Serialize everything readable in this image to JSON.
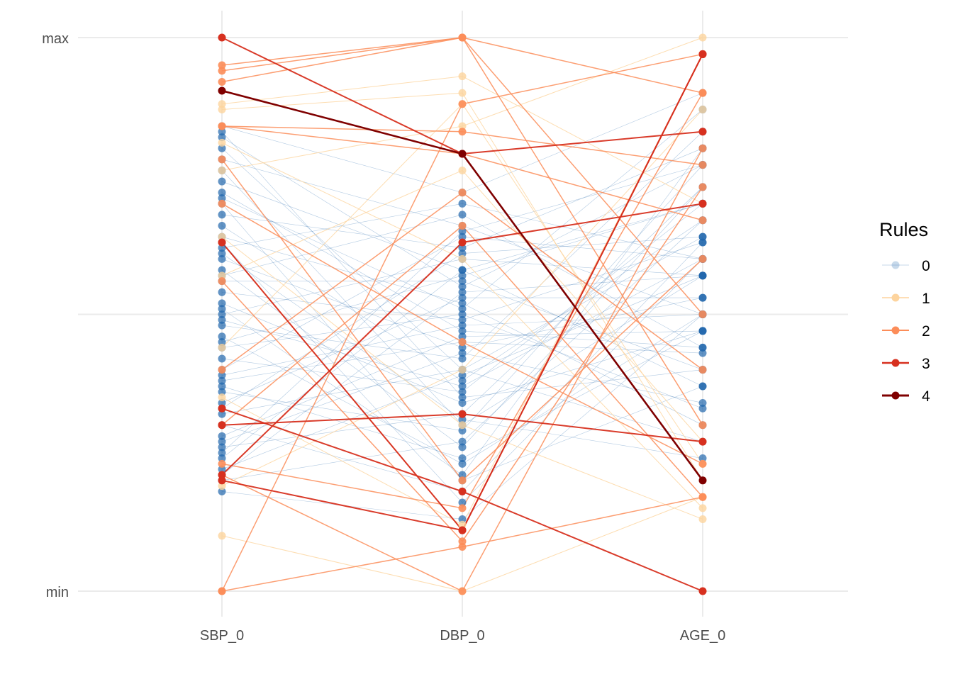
{
  "chart_data": {
    "type": "parallel-coordinates",
    "axes": [
      "SBP_0",
      "DBP_0",
      "AGE_0"
    ],
    "y_ticks": [
      "min",
      "max"
    ],
    "ylim": [
      0,
      1
    ],
    "grid": true,
    "legend": {
      "title": "Rules",
      "placement": "right",
      "entries": [
        "0",
        "1",
        "2",
        "3",
        "4"
      ]
    },
    "colors": {
      "0": "#2166ac",
      "1": "#fdd49e",
      "2": "#fc8d59",
      "3": "#d7301f",
      "4": "#7f0000"
    },
    "lines": [
      {
        "rule": 0,
        "v": [
          0.84,
          0.72,
          0.9
        ]
      },
      {
        "rule": 0,
        "v": [
          0.82,
          0.55,
          0.77
        ]
      },
      {
        "rule": 0,
        "v": [
          0.8,
          0.4,
          0.64
        ]
      },
      {
        "rule": 0,
        "v": [
          0.78,
          0.66,
          0.5
        ]
      },
      {
        "rule": 0,
        "v": [
          0.76,
          0.3,
          0.57
        ]
      },
      {
        "rule": 0,
        "v": [
          0.74,
          0.58,
          0.7
        ]
      },
      {
        "rule": 0,
        "v": [
          0.72,
          0.47,
          0.44
        ]
      },
      {
        "rule": 0,
        "v": [
          0.7,
          0.2,
          0.37
        ]
      },
      {
        "rule": 0,
        "v": [
          0.68,
          0.62,
          0.8
        ]
      },
      {
        "rule": 0,
        "v": [
          0.66,
          0.38,
          0.67
        ]
      },
      {
        "rule": 0,
        "v": [
          0.64,
          0.52,
          0.3
        ]
      },
      {
        "rule": 0,
        "v": [
          0.62,
          0.7,
          0.6
        ]
      },
      {
        "rule": 0,
        "v": [
          0.6,
          0.44,
          0.53
        ]
      },
      {
        "rule": 0,
        "v": [
          0.58,
          0.26,
          0.73
        ]
      },
      {
        "rule": 0,
        "v": [
          0.56,
          0.56,
          0.4
        ]
      },
      {
        "rule": 0,
        "v": [
          0.54,
          0.49,
          0.63
        ]
      },
      {
        "rule": 0,
        "v": [
          0.52,
          0.34,
          0.47
        ]
      },
      {
        "rule": 0,
        "v": [
          0.5,
          0.6,
          0.57
        ]
      },
      {
        "rule": 0,
        "v": [
          0.48,
          0.42,
          0.83
        ]
      },
      {
        "rule": 0,
        "v": [
          0.46,
          0.23,
          0.5
        ]
      },
      {
        "rule": 0,
        "v": [
          0.44,
          0.5,
          0.33
        ]
      },
      {
        "rule": 0,
        "v": [
          0.42,
          0.36,
          0.7
        ]
      },
      {
        "rule": 0,
        "v": [
          0.4,
          0.64,
          0.6
        ]
      },
      {
        "rule": 0,
        "v": [
          0.38,
          0.45,
          0.43
        ]
      },
      {
        "rule": 0,
        "v": [
          0.36,
          0.29,
          0.77
        ]
      },
      {
        "rule": 0,
        "v": [
          0.34,
          0.53,
          0.53
        ]
      },
      {
        "rule": 0,
        "v": [
          0.32,
          0.4,
          0.27
        ]
      },
      {
        "rule": 0,
        "v": [
          0.3,
          0.18,
          0.63
        ]
      },
      {
        "rule": 0,
        "v": [
          0.28,
          0.46,
          0.47
        ]
      },
      {
        "rule": 0,
        "v": [
          0.26,
          0.32,
          0.73
        ]
      },
      {
        "rule": 0,
        "v": [
          0.24,
          0.58,
          0.37
        ]
      },
      {
        "rule": 0,
        "v": [
          0.22,
          0.39,
          0.57
        ]
      },
      {
        "rule": 0,
        "v": [
          0.2,
          0.27,
          0.67
        ]
      },
      {
        "rule": 0,
        "v": [
          0.18,
          0.13,
          0.5
        ]
      },
      {
        "rule": 0,
        "v": [
          0.83,
          0.35,
          0.4
        ]
      },
      {
        "rule": 0,
        "v": [
          0.71,
          0.51,
          0.87
        ]
      },
      {
        "rule": 0,
        "v": [
          0.63,
          0.16,
          0.6
        ]
      },
      {
        "rule": 0,
        "v": [
          0.57,
          0.68,
          0.44
        ]
      },
      {
        "rule": 0,
        "v": [
          0.51,
          0.21,
          0.8
        ]
      },
      {
        "rule": 0,
        "v": [
          0.45,
          0.57,
          0.7
        ]
      },
      {
        "rule": 0,
        "v": [
          0.39,
          0.48,
          0.5
        ]
      },
      {
        "rule": 0,
        "v": [
          0.33,
          0.61,
          0.64
        ]
      },
      {
        "rule": 0,
        "v": [
          0.27,
          0.43,
          0.34
        ]
      },
      {
        "rule": 0,
        "v": [
          0.21,
          0.54,
          0.57
        ]
      },
      {
        "rule": 0,
        "v": [
          0.61,
          0.31,
          0.24
        ]
      },
      {
        "rule": 0,
        "v": [
          0.49,
          0.37,
          0.6
        ]
      },
      {
        "rule": 0,
        "v": [
          0.37,
          0.24,
          0.47
        ]
      },
      {
        "rule": 0,
        "v": [
          0.25,
          0.65,
          0.77
        ]
      },
      {
        "rule": 1,
        "v": [
          0.88,
          0.93,
          0.7
        ]
      },
      {
        "rule": 1,
        "v": [
          0.87,
          0.9,
          0.2
        ]
      },
      {
        "rule": 1,
        "v": [
          0.81,
          0.6,
          0.15
        ]
      },
      {
        "rule": 1,
        "v": [
          0.76,
          0.84,
          1.0
        ]
      },
      {
        "rule": 1,
        "v": [
          0.64,
          0.3,
          0.13
        ]
      },
      {
        "rule": 1,
        "v": [
          0.1,
          0.0,
          0.17
        ]
      },
      {
        "rule": 1,
        "v": [
          0.19,
          0.4,
          0.87
        ]
      },
      {
        "rule": 1,
        "v": [
          0.35,
          0.12,
          0.97
        ]
      },
      {
        "rule": 1,
        "v": [
          0.57,
          0.76,
          0.27
        ]
      },
      {
        "rule": 1,
        "v": [
          0.44,
          0.88,
          0.23
        ]
      },
      {
        "rule": 2,
        "v": [
          0.95,
          1.0,
          0.9
        ]
      },
      {
        "rule": 2,
        "v": [
          0.94,
          1.0,
          0.5
        ]
      },
      {
        "rule": 2,
        "v": [
          0.92,
          1.0,
          0.3
        ]
      },
      {
        "rule": 2,
        "v": [
          0.84,
          0.83,
          0.77
        ]
      },
      {
        "rule": 2,
        "v": [
          0.84,
          0.79,
          0.67
        ]
      },
      {
        "rule": 2,
        "v": [
          0.0,
          0.88,
          0.97
        ]
      },
      {
        "rule": 2,
        "v": [
          0.0,
          0.08,
          0.17
        ]
      },
      {
        "rule": 2,
        "v": [
          0.63,
          0.11,
          0.97
        ]
      },
      {
        "rule": 2,
        "v": [
          0.56,
          0.09,
          0.73
        ]
      },
      {
        "rule": 2,
        "v": [
          0.23,
          0.15,
          0.9
        ]
      },
      {
        "rule": 2,
        "v": [
          0.78,
          0.2,
          0.6
        ]
      },
      {
        "rule": 2,
        "v": [
          0.4,
          0.72,
          0.4
        ]
      },
      {
        "rule": 2,
        "v": [
          0.21,
          0.0,
          0.8
        ]
      },
      {
        "rule": 2,
        "v": [
          0.7,
          0.45,
          0.23
        ]
      },
      {
        "rule": 2,
        "v": [
          0.3,
          0.66,
          0.17
        ]
      },
      {
        "rule": 3,
        "v": [
          1.0,
          0.79,
          0.83
        ]
      },
      {
        "rule": 3,
        "v": [
          0.21,
          0.63,
          0.7
        ]
      },
      {
        "rule": 3,
        "v": [
          0.63,
          0.11,
          0.97
        ]
      },
      {
        "rule": 3,
        "v": [
          0.33,
          0.18,
          0.0
        ]
      },
      {
        "rule": 3,
        "v": [
          0.3,
          0.32,
          0.27
        ]
      },
      {
        "rule": 3,
        "v": [
          0.2,
          0.11,
          0.97
        ]
      },
      {
        "rule": 4,
        "v": [
          0.904,
          0.79,
          0.2
        ]
      }
    ]
  }
}
